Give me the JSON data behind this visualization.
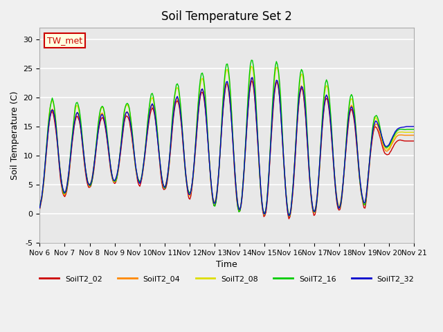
{
  "title": "Soil Temperature Set 2",
  "xlabel": "Time",
  "ylabel": "Soil Temperature (C)",
  "ylim": [
    -5,
    32
  ],
  "yticks": [
    -5,
    0,
    5,
    10,
    15,
    20,
    25,
    30
  ],
  "series_colors": {
    "SoilT2_02": "#cc0000",
    "SoilT2_04": "#ff8800",
    "SoilT2_08": "#dddd00",
    "SoilT2_16": "#00cc00",
    "SoilT2_32": "#0000cc"
  },
  "series_names": [
    "SoilT2_02",
    "SoilT2_04",
    "SoilT2_08",
    "SoilT2_16",
    "SoilT2_32"
  ],
  "annotation_text": "TW_met",
  "plot_bg_color": "#e8e8e8",
  "x_tick_labels": [
    "Nov 6",
    "Nov 7",
    "Nov 8",
    "Nov 9",
    "Nov 10",
    "Nov 11",
    "Nov 12",
    "Nov 13",
    "Nov 14",
    "Nov 15",
    "Nov 16",
    "Nov 17",
    "Nov 18",
    "Nov 19",
    "Nov 20",
    "Nov 21"
  ],
  "n_points": 360,
  "days": 15,
  "noise_scale": 0.3
}
